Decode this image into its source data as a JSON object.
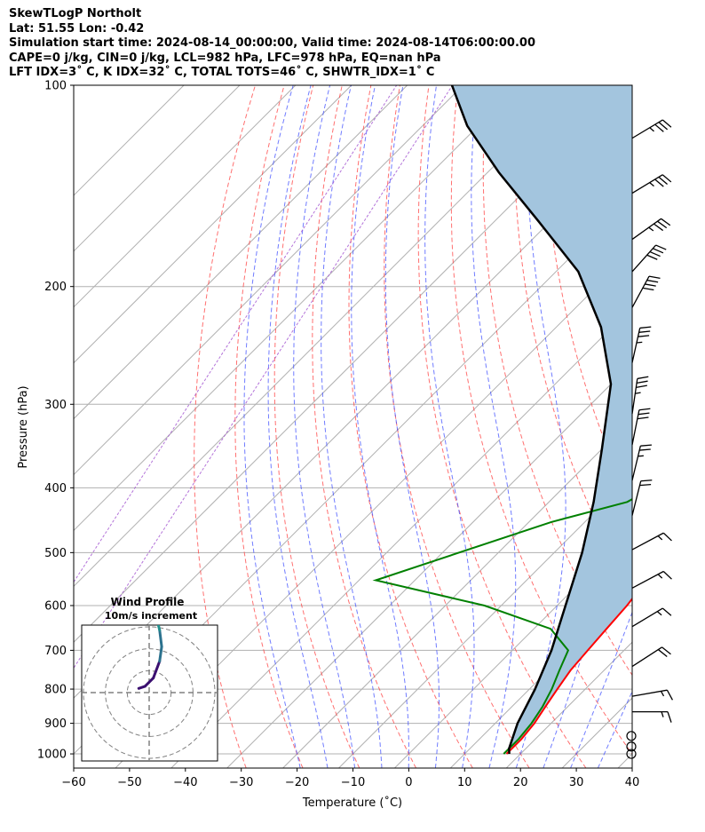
{
  "header": {
    "line1": "SkewTLogP Northolt",
    "line2": "Lat: 51.55   Lon: -0.42",
    "line3": "Simulation start time: 2024-08-14_00:00:00, Valid time: 2024-08-14T06:00:00.00",
    "line4": "CAPE=0 j/kg, CIN=0 j/kg, LCL=982 hPa, LFC=978 hPa, EQ=nan hPa",
    "line5": "LFT IDX=3˚ C, K IDX=32˚ C, TOTAL TOTS=46˚ C, SHWTR_IDX=1˚ C"
  },
  "chart_data": {
    "type": "line",
    "title": "SkewTLogP Northolt",
    "xlabel": "Temperature (˚C)",
    "ylabel": "Pressure (hPa)",
    "xlim": [
      -60,
      40
    ],
    "ylim": [
      1050,
      100
    ],
    "y_scale": "log",
    "grid": true,
    "x_ticks": [
      -60,
      -50,
      -40,
      -30,
      -20,
      -10,
      0,
      10,
      20,
      30,
      40
    ],
    "y_ticks": [
      100,
      200,
      300,
      400,
      500,
      600,
      700,
      800,
      900,
      1000
    ],
    "series": [
      {
        "color": "#ff0000",
        "points": [
          [
            17.5,
            1000
          ],
          [
            17.5,
            950
          ],
          [
            17,
            900
          ],
          [
            16,
            850
          ],
          [
            15,
            800
          ],
          [
            14,
            750
          ],
          [
            13.5,
            700
          ],
          [
            13,
            650
          ],
          [
            12.5,
            600
          ],
          [
            11.5,
            550
          ],
          [
            9.5,
            500
          ],
          [
            7,
            450
          ],
          [
            5.5,
            425
          ],
          [
            5,
            400
          ],
          [
            3.5,
            375
          ],
          [
            1.5,
            350
          ],
          [
            -2,
            325
          ],
          [
            -5,
            300
          ],
          [
            -8.5,
            275
          ],
          [
            -11,
            250
          ],
          [
            -13,
            230
          ],
          [
            -13.5,
            220
          ],
          [
            -14.5,
            210
          ],
          [
            -17,
            200
          ],
          [
            -19,
            190
          ],
          [
            -21.5,
            180
          ],
          [
            -26,
            170
          ],
          [
            -29,
            160
          ],
          [
            -31.5,
            150
          ],
          [
            -34,
            140
          ],
          [
            -36,
            130
          ],
          [
            -38,
            120
          ],
          [
            -40,
            110
          ],
          [
            -41.5,
            100
          ]
        ]
      },
      {
        "color": "#008000",
        "points": [
          [
            17,
            1000
          ],
          [
            17,
            950
          ],
          [
            16.5,
            900
          ],
          [
            15.5,
            850
          ],
          [
            14,
            800
          ],
          [
            12,
            750
          ],
          [
            10,
            700
          ],
          [
            3,
            650
          ],
          [
            -13,
            600
          ],
          [
            -37,
            550
          ],
          [
            -16,
            450
          ],
          [
            -6,
            420
          ],
          [
            -4,
            400
          ],
          [
            -4,
            375
          ],
          [
            -6,
            350
          ],
          [
            -9,
            325
          ],
          [
            -13,
            300
          ],
          [
            -18,
            275
          ],
          [
            -22,
            250
          ],
          [
            -23,
            240
          ],
          [
            -23,
            230
          ],
          [
            -21,
            220
          ],
          [
            -20,
            210
          ],
          [
            -19,
            200
          ],
          [
            -24,
            190
          ],
          [
            -31,
            180
          ],
          [
            -44,
            175
          ],
          [
            -43,
            170
          ],
          [
            -31,
            150
          ],
          [
            -26,
            130
          ],
          [
            -24,
            115
          ],
          [
            -27,
            100
          ]
        ]
      },
      {
        "color": "#000000",
        "points": [
          [
            18,
            1000
          ],
          [
            17,
            982
          ],
          [
            14,
            900
          ],
          [
            11,
            800
          ],
          [
            7,
            700
          ],
          [
            1.5,
            600
          ],
          [
            -5,
            500
          ],
          [
            -12,
            420
          ],
          [
            -20,
            350
          ],
          [
            -30,
            280
          ],
          [
            -42,
            230
          ],
          [
            -56,
            190
          ],
          [
            -72,
            160
          ],
          [
            -88,
            135
          ],
          [
            -102,
            115
          ],
          [
            -112,
            100
          ]
        ]
      }
    ],
    "fill": {
      "color": "#a3c5de",
      "between": "parcel and temperature profiles"
    },
    "wind_barbs": [
      {
        "p": 120,
        "u": -30,
        "v": -18
      },
      {
        "p": 145,
        "u": -28,
        "v": -17
      },
      {
        "p": 170,
        "u": -28,
        "v": -20
      },
      {
        "p": 190,
        "u": -25,
        "v": -28
      },
      {
        "p": 215,
        "u": -20,
        "v": -37
      },
      {
        "p": 260,
        "u": -8,
        "v": -36
      },
      {
        "p": 310,
        "u": -5,
        "v": -34
      },
      {
        "p": 345,
        "u": -6,
        "v": -30
      },
      {
        "p": 390,
        "u": -6,
        "v": -25
      },
      {
        "p": 440,
        "u": -5,
        "v": -20
      },
      {
        "p": 495,
        "u": -15,
        "v": -8
      },
      {
        "p": 565,
        "u": -15,
        "v": -8
      },
      {
        "p": 645,
        "u": -15,
        "v": -9
      },
      {
        "p": 740,
        "u": -17,
        "v": -11
      },
      {
        "p": 820,
        "u": -17,
        "v": -3
      },
      {
        "p": 865,
        "u": -17,
        "v": 0
      },
      {
        "p": 940,
        "u": 0,
        "v": 0
      },
      {
        "p": 975,
        "u": 0,
        "v": 0
      },
      {
        "p": 1000,
        "u": 0,
        "v": 0
      }
    ],
    "hodograph": {
      "title": "Wind Profile",
      "subtitle": "10m/s increment",
      "rings": [
        10,
        20,
        30
      ],
      "path": [
        [
          -5,
          2
        ],
        [
          -2,
          3
        ],
        [
          2,
          7
        ],
        [
          5,
          15
        ],
        [
          6,
          22
        ],
        [
          5,
          30
        ],
        [
          3,
          38
        ],
        [
          2,
          42
        ],
        [
          0,
          48
        ],
        [
          -2,
          50
        ],
        [
          -5,
          53
        ],
        [
          -8,
          57
        ]
      ],
      "colors": [
        "#3b0f70",
        "#2c728e",
        "#21908d",
        "#5ec962",
        "#c2df23"
      ]
    }
  }
}
